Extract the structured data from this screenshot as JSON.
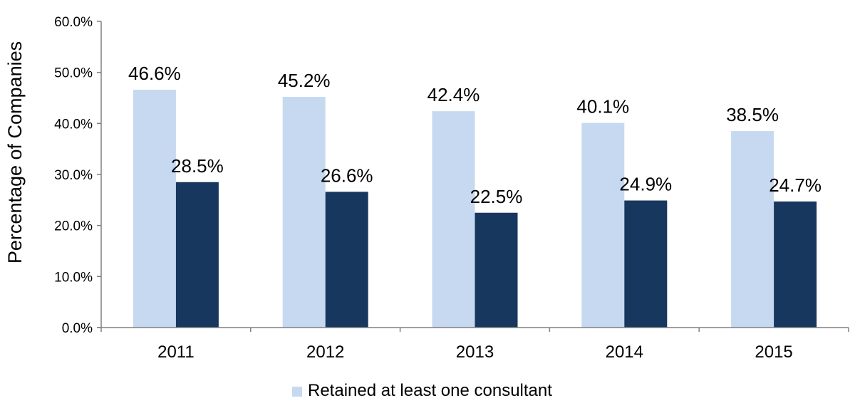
{
  "chart_data": {
    "type": "bar",
    "title": "",
    "xlabel": "",
    "ylabel": "Percentage of Companies",
    "ylim": [
      0,
      60
    ],
    "y_ticks": [
      0,
      10,
      20,
      30,
      40,
      50,
      60
    ],
    "y_tick_format": "percent_1dp",
    "categories": [
      "2011",
      "2012",
      "2013",
      "2014",
      "2015"
    ],
    "series": [
      {
        "name": "Retained at least one consultant",
        "color": "#c6d9f1",
        "values": [
          46.6,
          45.2,
          42.4,
          40.1,
          38.5
        ],
        "labels": [
          "46.6%",
          "45.2%",
          "42.4%",
          "40.1%",
          "38.5%"
        ]
      },
      {
        "color": "#17375e",
        "values": [
          28.5,
          26.6,
          22.5,
          24.9,
          24.7
        ],
        "labels": [
          "28.5%",
          "26.6%",
          "22.5%",
          "24.9%",
          "24.7%"
        ]
      }
    ],
    "legend": {
      "placement": "bottom",
      "entries": [
        "Retained at least one consultant"
      ]
    },
    "grid": false
  }
}
